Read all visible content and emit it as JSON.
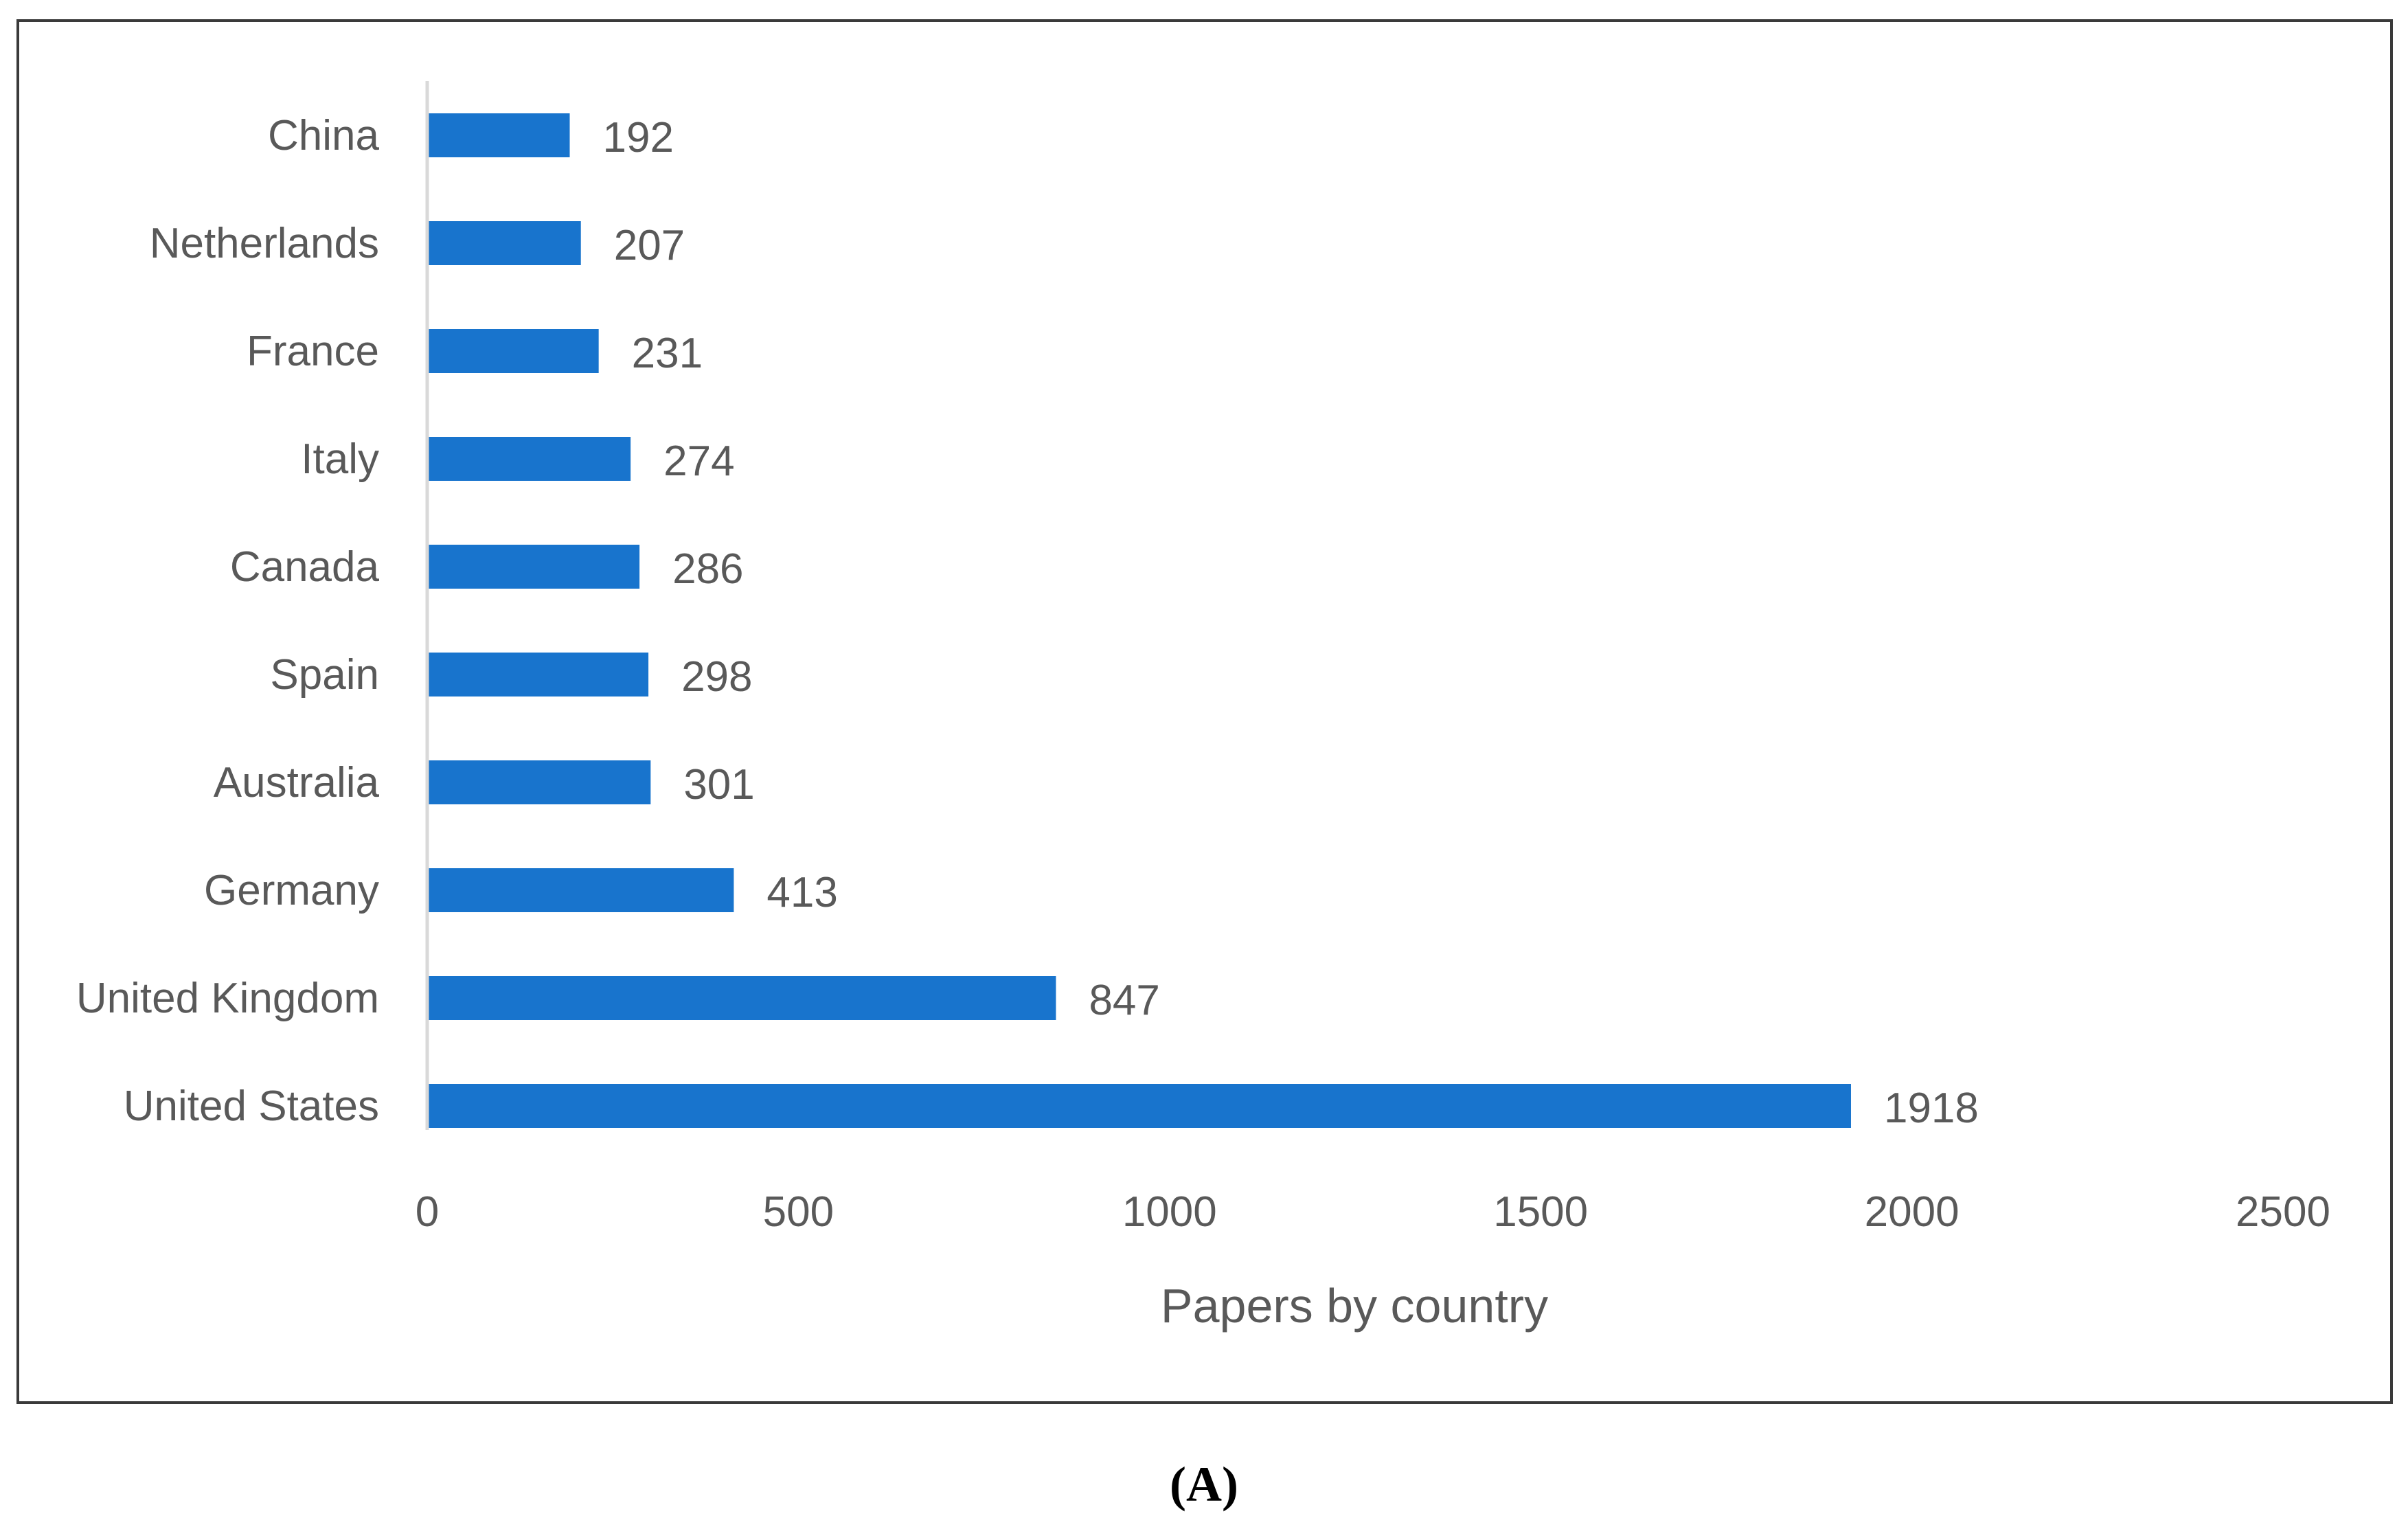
{
  "chart_data": {
    "type": "bar",
    "orientation": "horizontal",
    "categories": [
      "China",
      "Netherlands",
      "France",
      "Italy",
      "Canada",
      "Spain",
      "Australia",
      "Germany",
      "United Kingdom",
      "United States"
    ],
    "values": [
      192,
      207,
      231,
      274,
      286,
      298,
      301,
      413,
      847,
      1918
    ],
    "data_labels": [
      "192",
      "207",
      "231",
      "274",
      "286",
      "298",
      "301",
      "413",
      "847",
      "1918"
    ],
    "xlabel": "Papers by country",
    "ylabel": "",
    "xlim": [
      0,
      2500
    ],
    "x_ticks": [
      0,
      500,
      1000,
      1500,
      2000,
      2500
    ],
    "x_tick_labels": [
      "0",
      "500",
      "1000",
      "1500",
      "2000",
      "2500"
    ],
    "grid": false,
    "legend": "none",
    "bar_color": "#1874CD",
    "text_color": "#595959",
    "axis_line_color": "#D9D9D9"
  },
  "panel_label": "(A)"
}
